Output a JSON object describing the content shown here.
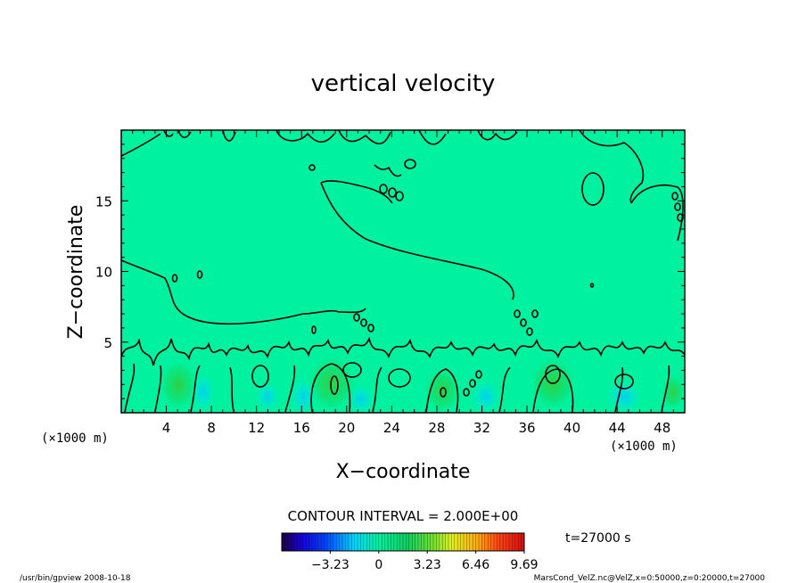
{
  "chart_data": {
    "type": "heatmap",
    "title": "vertical velocity",
    "xlabel": "X−coordinate",
    "ylabel": "Z−coordinate",
    "x_unit_left": "(×1000 m)",
    "x_unit_right": "(×1000 m)",
    "xlim": [
      0,
      50
    ],
    "ylim": [
      0,
      20
    ],
    "x_ticks": [
      4,
      8,
      12,
      16,
      20,
      24,
      28,
      32,
      36,
      40,
      44,
      48
    ],
    "x_tick_labels": [
      "4",
      "8",
      "12",
      "16",
      "20",
      "24",
      "28",
      "32",
      "36",
      "40",
      "44",
      "48"
    ],
    "y_ticks": [
      5,
      10,
      15
    ],
    "y_tick_labels": [
      "5",
      "10",
      "15"
    ],
    "contour_interval_text": "CONTOUR INTERVAL = 2.000E+00",
    "time_text": "t=27000 s",
    "colorbar": {
      "ticks": [
        -3.23,
        0,
        3.23,
        6.46,
        9.69
      ],
      "tick_labels": [
        "−3.23",
        "0",
        "3.23",
        "6.46",
        "9.69"
      ],
      "range": [
        -6.46,
        9.69
      ]
    },
    "background_color": "#00f2a0",
    "footer_left": "/usr/bin/gpview   2008-10-18",
    "footer_right": "MarsCond_VelZ.nc@VelZ,x=0:50000,z=0:20000,t=27000"
  }
}
